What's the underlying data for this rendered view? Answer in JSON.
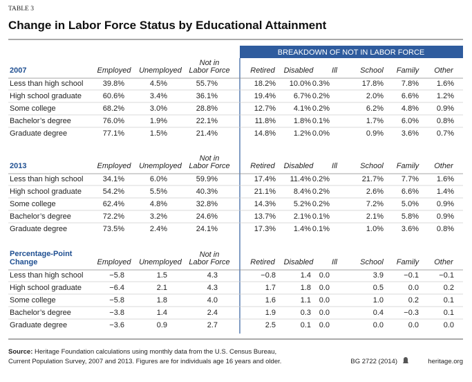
{
  "header": {
    "label": "TABLE 3",
    "title": "Change in Labor Force Status by Educational Attainment"
  },
  "breakdown_header": "BREAKDOWN OF NOT IN LABOR FORCE",
  "sections": [
    {
      "title": [
        "2007"
      ],
      "columns": [
        [
          "Employed"
        ],
        [
          "Unemployed"
        ],
        [
          "Not in",
          "Labor Force"
        ],
        [
          "Retired"
        ],
        [
          "Disabled"
        ],
        [
          "Ill"
        ],
        [
          "School"
        ],
        [
          "Family"
        ],
        [
          "Other"
        ]
      ],
      "rows": [
        [
          "Less than high school",
          "39.8%",
          "4.5%",
          "55.7%",
          "18.2%",
          "10.0%",
          "0.3%",
          "17.8%",
          "7.8%",
          "1.6%"
        ],
        [
          "High school graduate",
          "60.6%",
          "3.4%",
          "36.1%",
          "19.4%",
          "6.7%",
          "0.2%",
          "2.0%",
          "6.6%",
          "1.2%"
        ],
        [
          "Some college",
          "68.2%",
          "3.0%",
          "28.8%",
          "12.7%",
          "4.1%",
          "0.2%",
          "6.2%",
          "4.8%",
          "0.9%"
        ],
        [
          "Bachelor’s degree",
          "76.0%",
          "1.9%",
          "22.1%",
          "11.8%",
          "1.8%",
          "0.1%",
          "1.7%",
          "6.0%",
          "0.8%"
        ],
        [
          "Graduate degree",
          "77.1%",
          "1.5%",
          "21.4%",
          "14.8%",
          "1.2%",
          "0.0%",
          "0.9%",
          "3.6%",
          "0.7%"
        ]
      ]
    },
    {
      "title": [
        "2013"
      ],
      "columns": [
        [
          "Employed"
        ],
        [
          "Unemployed"
        ],
        [
          "Not in",
          "Labor Force"
        ],
        [
          "Retired"
        ],
        [
          "Disabled"
        ],
        [
          "Ill"
        ],
        [
          "School"
        ],
        [
          "Family"
        ],
        [
          "Other"
        ]
      ],
      "rows": [
        [
          "Less than high school",
          "34.1%",
          "6.0%",
          "59.9%",
          "17.4%",
          "11.4%",
          "0.2%",
          "21.7%",
          "7.7%",
          "1.6%"
        ],
        [
          "High school graduate",
          "54.2%",
          "5.5%",
          "40.3%",
          "21.1%",
          "8.4%",
          "0.2%",
          "2.6%",
          "6.6%",
          "1.4%"
        ],
        [
          "Some college",
          "62.4%",
          "4.8%",
          "32.8%",
          "14.3%",
          "5.2%",
          "0.2%",
          "7.2%",
          "5.0%",
          "0.9%"
        ],
        [
          "Bachelor’s degree",
          "72.2%",
          "3.2%",
          "24.6%",
          "13.7%",
          "2.1%",
          "0.1%",
          "2.1%",
          "5.8%",
          "0.9%"
        ],
        [
          "Graduate degree",
          "73.5%",
          "2.4%",
          "24.1%",
          "17.3%",
          "1.4%",
          "0.1%",
          "1.0%",
          "3.6%",
          "0.8%"
        ]
      ]
    },
    {
      "title": [
        "Percentage-Point",
        "Change"
      ],
      "columns": [
        [
          "Employed"
        ],
        [
          "Unemployed"
        ],
        [
          "Not in",
          "Labor Force"
        ],
        [
          "Retired"
        ],
        [
          "Disabled"
        ],
        [
          "Ill"
        ],
        [
          "School"
        ],
        [
          "Family"
        ],
        [
          "Other"
        ]
      ],
      "rows": [
        [
          "Less than high school",
          "−5.8",
          "1.5",
          "4.3",
          "−0.8",
          "1.4",
          "0.0",
          "3.9",
          "−0.1",
          "−0.1"
        ],
        [
          "High school graduate",
          "−6.4",
          "2.1",
          "4.3",
          "1.7",
          "1.8",
          "0.0",
          "0.5",
          "0.0",
          "0.2"
        ],
        [
          "Some college",
          "−5.8",
          "1.8",
          "4.0",
          "1.6",
          "1.1",
          "0.0",
          "1.0",
          "0.2",
          "0.1"
        ],
        [
          "Bachelor’s degree",
          "−3.8",
          "1.4",
          "2.4",
          "1.9",
          "0.3",
          "0.0",
          "0.4",
          "−0.3",
          "0.1"
        ],
        [
          "Graduate degree",
          "−3.6",
          "0.9",
          "2.7",
          "2.5",
          "0.1",
          "0.0",
          "0.0",
          "0.0",
          "0.0"
        ]
      ]
    }
  ],
  "source": {
    "label": "Source:",
    "lines": [
      "Heritage Foundation calculations using monthly data from the U.S. Census Bureau,",
      "Current Population Survey, 2007 and 2013. Figures are for individuals age 16 years and older."
    ]
  },
  "footer": {
    "id": "BG 2722 (2014)",
    "site": "heritage.org"
  }
}
